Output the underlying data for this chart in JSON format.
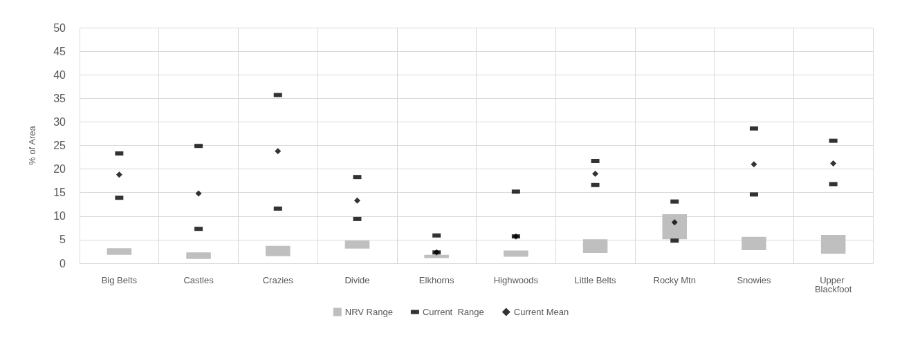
{
  "chart_data": {
    "type": "bar",
    "ylabel": "% of Area",
    "categories": [
      "Big Belts",
      "Castles",
      "Crazies",
      "Divide",
      "Elkhorns",
      "Highwoods",
      "Little Belts",
      "Rocky Mtn",
      "Snowies",
      "Upper Blackfoot"
    ],
    "ylim": [
      0,
      50
    ],
    "yticks": [
      0,
      5,
      10,
      15,
      20,
      25,
      30,
      35,
      40,
      45,
      50
    ],
    "grid": true,
    "legend": "bottom",
    "series": [
      {
        "name": "NRV Range",
        "color": "#bfbfbf",
        "base": [
          1.8,
          0.9,
          1.5,
          3.1,
          1.1,
          1.4,
          2.2,
          5.1,
          2.8,
          2.0
        ],
        "values": [
          1.4,
          1.4,
          2.2,
          1.7,
          0.7,
          1.3,
          2.9,
          5.3,
          2.8,
          4.0
        ]
      },
      {
        "name": "Current  Range",
        "type": "scatter",
        "marker": "square",
        "color": "#000000",
        "x": [
          "Big Belts",
          "Castles",
          "Crazies",
          "Divide",
          "Elkhorns",
          "Highwoods",
          "Little Belts",
          "Rocky Mtn",
          "Snowies",
          "Upper Blackfoot",
          "Big Belts",
          "Castles",
          "Crazies",
          "Divide",
          "Elkhorns",
          "Highwoods",
          "Little Belts",
          "Rocky Mtn",
          "Snowies",
          "Upper Blackfoot"
        ],
        "values": [
          13.9,
          7.3,
          11.6,
          9.4,
          2.3,
          5.7,
          16.6,
          4.8,
          14.6,
          16.8,
          23.3,
          24.9,
          35.7,
          18.3,
          5.9,
          15.2,
          21.7,
          13.1,
          28.6,
          26.0
        ]
      },
      {
        "name": "Current Mean",
        "type": "scatter",
        "marker": "diamond",
        "color": "#000000",
        "x": [
          "Big Belts",
          "Castles",
          "Crazies",
          "Divide",
          "Elkhorns",
          "Highwoods",
          "Little Belts",
          "Rocky Mtn",
          "Snowies",
          "Upper Blackfoot"
        ],
        "values": [
          18.8,
          14.8,
          23.8,
          13.3,
          2.3,
          5.7,
          19.0,
          8.7,
          21.0,
          21.2
        ]
      }
    ]
  }
}
